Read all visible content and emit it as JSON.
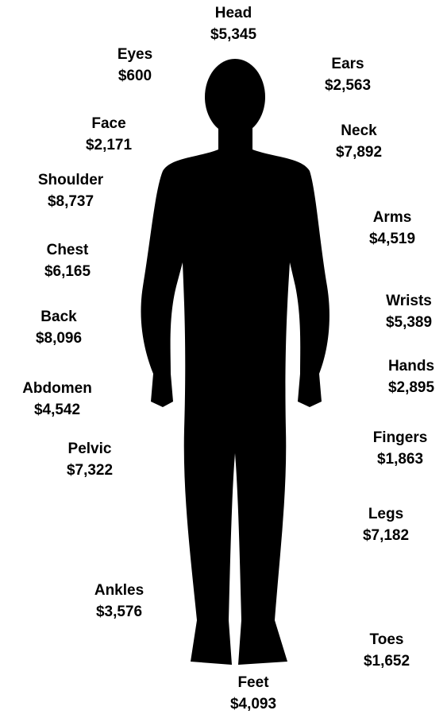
{
  "labels": [
    {
      "name": "Head",
      "amount": "$5,345"
    },
    {
      "name": "Eyes",
      "amount": "$600"
    },
    {
      "name": "Ears",
      "amount": "$2,563"
    },
    {
      "name": "Face",
      "amount": "$2,171"
    },
    {
      "name": "Neck",
      "amount": "$7,892"
    },
    {
      "name": "Shoulder",
      "amount": "$8,737"
    },
    {
      "name": "Arms",
      "amount": "$4,519"
    },
    {
      "name": "Chest",
      "amount": "$6,165"
    },
    {
      "name": "Wrists",
      "amount": "$5,389"
    },
    {
      "name": "Back",
      "amount": "$8,096"
    },
    {
      "name": "Hands",
      "amount": "$2,895"
    },
    {
      "name": "Abdomen",
      "amount": "$4,542"
    },
    {
      "name": "Fingers",
      "amount": "$1,863"
    },
    {
      "name": "Pelvic",
      "amount": "$7,322"
    },
    {
      "name": "Legs",
      "amount": "$7,182"
    },
    {
      "name": "Ankles",
      "amount": "$3,576"
    },
    {
      "name": "Toes",
      "amount": "$1,652"
    },
    {
      "name": "Feet",
      "amount": "$4,093"
    }
  ]
}
